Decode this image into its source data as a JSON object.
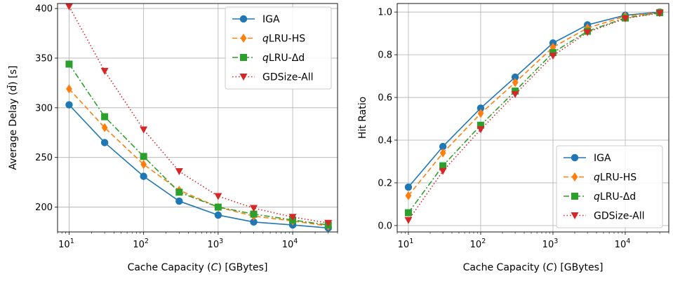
{
  "chart_data": [
    {
      "type": "line",
      "xscale": "log",
      "xlabel": "Cache Capacity (C) [GBytes]",
      "ylabel": "Average Delay (d̄) [s]",
      "xlim": [
        7,
        40000
      ],
      "ylim": [
        175,
        405
      ],
      "xticks": [
        {
          "value": 10,
          "base": "10",
          "exp": "1"
        },
        {
          "value": 100,
          "base": "10",
          "exp": "2"
        },
        {
          "value": 1000,
          "base": "10",
          "exp": "3"
        },
        {
          "value": 10000,
          "base": "10",
          "exp": "4"
        }
      ],
      "yticks": [
        200,
        250,
        300,
        350,
        400
      ],
      "grid": true,
      "legend_position": "top-right",
      "x": [
        10,
        30,
        100,
        300,
        1000,
        3000,
        10000,
        30000
      ],
      "series": [
        {
          "name": "IGA",
          "color": "#1f77b4",
          "marker": "circle",
          "dash": "",
          "values": [
            303,
            265,
            231,
            206,
            192,
            185,
            182,
            179
          ]
        },
        {
          "name_prefix": "q",
          "name": "LRU-HS",
          "color": "#ff7f0e",
          "marker": "diamond",
          "dash": "7,4",
          "values": [
            319,
            280,
            243,
            217,
            200,
            191,
            186,
            181
          ]
        },
        {
          "name_prefix": "q",
          "name": "LRU-Δd",
          "color": "#2ca02c",
          "marker": "square",
          "dash": "8,3,2,3",
          "values": [
            344,
            291,
            251,
            215,
            200,
            193,
            187,
            182
          ]
        },
        {
          "name": "GDSize-All",
          "color": "#d62728",
          "marker": "triangle-down",
          "dash": "1.5,3",
          "values": [
            402,
            337,
            278,
            236,
            211,
            199,
            190,
            184
          ]
        }
      ]
    },
    {
      "type": "line",
      "xscale": "log",
      "xlabel": "Cache Capacity (C) [GBytes]",
      "ylabel": "Hit Ratio",
      "xlim": [
        7,
        40000
      ],
      "ylim": [
        -0.03,
        1.04
      ],
      "xticks": [
        {
          "value": 10,
          "base": "10",
          "exp": "1"
        },
        {
          "value": 100,
          "base": "10",
          "exp": "2"
        },
        {
          "value": 1000,
          "base": "10",
          "exp": "3"
        },
        {
          "value": 10000,
          "base": "10",
          "exp": "4"
        }
      ],
      "yticks": [
        0.0,
        0.2,
        0.4,
        0.6,
        0.8,
        1.0
      ],
      "grid": true,
      "legend_position": "bottom-right",
      "x": [
        10,
        30,
        100,
        300,
        1000,
        3000,
        10000,
        30000
      ],
      "series": [
        {
          "name": "IGA",
          "color": "#1f77b4",
          "marker": "circle",
          "dash": "",
          "values": [
            0.18,
            0.37,
            0.55,
            0.695,
            0.855,
            0.94,
            0.985,
            1.0
          ]
        },
        {
          "name_prefix": "q",
          "name": "LRU-HS",
          "color": "#ff7f0e",
          "marker": "diamond",
          "dash": "7,4",
          "values": [
            0.14,
            0.34,
            0.525,
            0.67,
            0.835,
            0.925,
            0.98,
            0.998
          ]
        },
        {
          "name_prefix": "q",
          "name": "LRU-Δd",
          "color": "#2ca02c",
          "marker": "square",
          "dash": "8,3,2,3",
          "values": [
            0.06,
            0.28,
            0.47,
            0.63,
            0.81,
            0.91,
            0.972,
            0.997
          ]
        },
        {
          "name": "GDSize-All",
          "color": "#d62728",
          "marker": "triangle-down",
          "dash": "1.5,3",
          "values": [
            0.025,
            0.255,
            0.45,
            0.615,
            0.795,
            0.905,
            0.97,
            0.995
          ]
        }
      ]
    }
  ]
}
